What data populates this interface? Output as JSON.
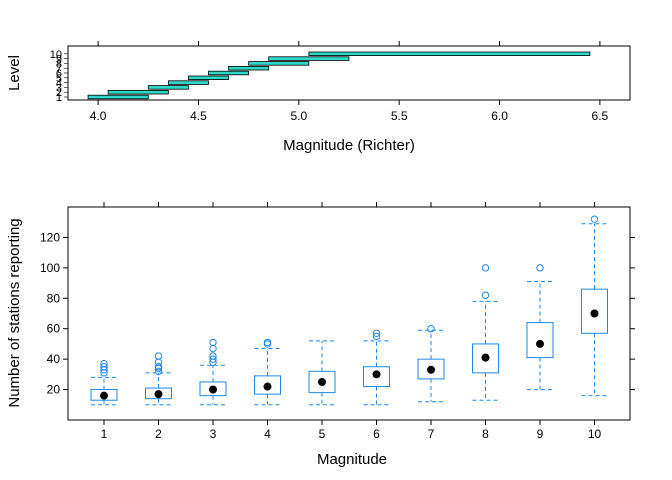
{
  "colors": {
    "shingle_fill": "#2fd8c8",
    "box": "#1e88e5",
    "dot": "#000000"
  },
  "chart_data": [
    {
      "type": "shingle",
      "xlabel": "Magnitude (Richter)",
      "ylabel": "Level",
      "xlim": [
        3.85,
        6.65
      ],
      "xticks": [
        4.0,
        4.5,
        5.0,
        5.5,
        6.0,
        6.5
      ],
      "level_labels": [
        "1",
        "2",
        "3",
        "4",
        "5",
        "6",
        "7",
        "8",
        "9",
        "10"
      ],
      "intervals": [
        [
          3.95,
          4.25
        ],
        [
          4.05,
          4.35
        ],
        [
          4.25,
          4.45
        ],
        [
          4.35,
          4.55
        ],
        [
          4.45,
          4.65
        ],
        [
          4.55,
          4.75
        ],
        [
          4.65,
          4.85
        ],
        [
          4.75,
          5.05
        ],
        [
          4.85,
          5.25
        ],
        [
          5.05,
          6.45
        ]
      ]
    },
    {
      "type": "box",
      "xlabel": "Magnitude",
      "ylabel": "Number of stations reporting",
      "ylim": [
        0,
        140
      ],
      "yticks": [
        20,
        40,
        60,
        80,
        100,
        120
      ],
      "categories": [
        "1",
        "2",
        "3",
        "4",
        "5",
        "6",
        "7",
        "8",
        "9",
        "10"
      ],
      "boxes": [
        {
          "min": 10,
          "q1": 13,
          "median": 16,
          "q3": 20,
          "max": 28,
          "outliers": [
            31,
            33,
            35,
            37
          ]
        },
        {
          "min": 10,
          "q1": 14,
          "median": 17,
          "q3": 21,
          "max": 31,
          "outliers": [
            32,
            34,
            35,
            38,
            42
          ]
        },
        {
          "min": 10,
          "q1": 16,
          "median": 20,
          "q3": 25,
          "max": 36,
          "outliers": [
            38,
            40,
            42,
            47,
            51
          ]
        },
        {
          "min": 10,
          "q1": 17,
          "median": 22,
          "q3": 29,
          "max": 47,
          "outliers": [
            50,
            51
          ]
        },
        {
          "min": 10,
          "q1": 18,
          "median": 25,
          "q3": 32,
          "max": 52,
          "outliers": []
        },
        {
          "min": 10,
          "q1": 22,
          "median": 30,
          "q3": 35,
          "max": 52,
          "outliers": [
            55,
            57
          ]
        },
        {
          "min": 12,
          "q1": 27,
          "median": 33,
          "q3": 40,
          "max": 59,
          "outliers": [
            60
          ]
        },
        {
          "min": 13,
          "q1": 31,
          "median": 41,
          "q3": 50,
          "max": 78,
          "outliers": [
            82,
            100
          ]
        },
        {
          "min": 20,
          "q1": 41,
          "median": 50,
          "q3": 64,
          "max": 91,
          "outliers": [
            100
          ]
        },
        {
          "min": 16,
          "q1": 57,
          "median": 70,
          "q3": 86,
          "max": 129,
          "outliers": [
            132
          ]
        }
      ]
    }
  ]
}
